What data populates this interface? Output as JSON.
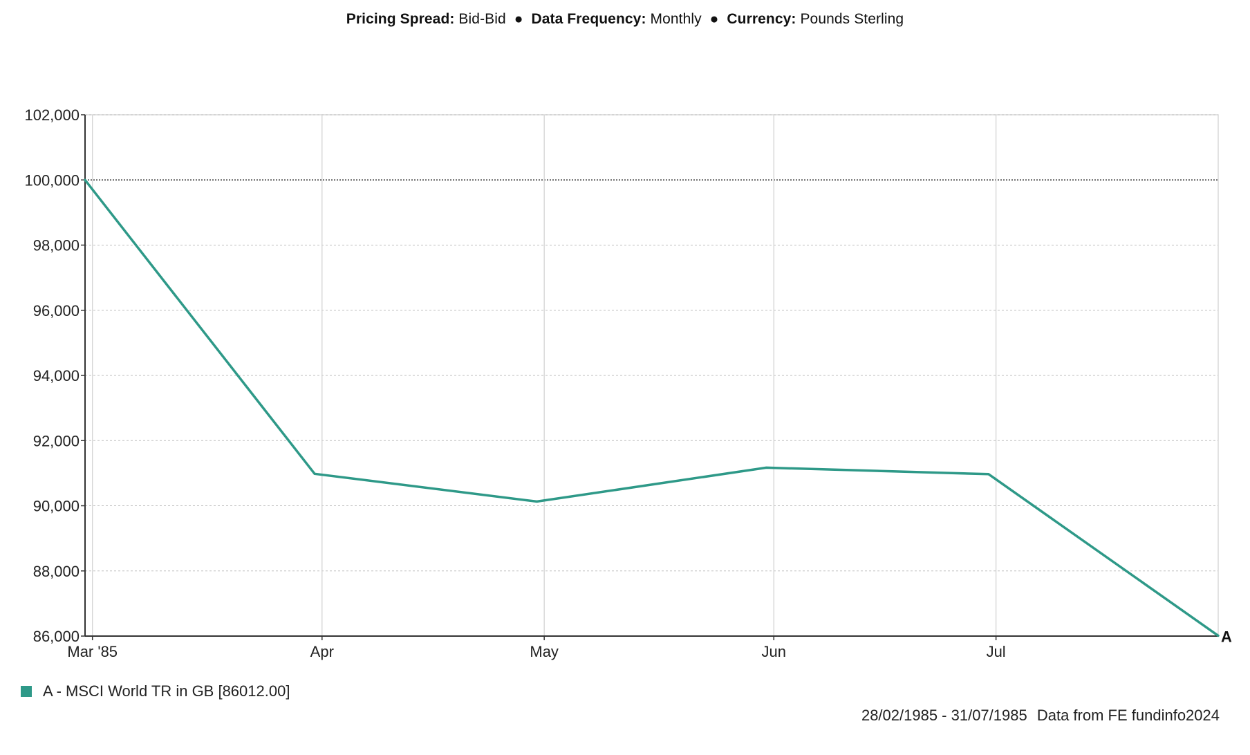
{
  "header": {
    "items": [
      {
        "label": "Pricing Spread:",
        "value": "Bid-Bid"
      },
      {
        "label": "Data Frequency:",
        "value": "Monthly"
      },
      {
        "label": "Currency:",
        "value": "Pounds Sterling"
      }
    ],
    "separator": "●"
  },
  "chart_data": {
    "type": "line",
    "x": [
      "1985-02-28",
      "1985-03-31",
      "1985-04-30",
      "1985-05-31",
      "1985-06-30",
      "1985-07-31"
    ],
    "series": [
      {
        "name": "A - MSCI World TR in GB [86012.00]",
        "marker": "A",
        "color": "#2e9988",
        "values": [
          100000,
          90980,
          90130,
          91170,
          90970,
          86012
        ]
      }
    ],
    "x_ticks": [
      {
        "date": "1985-03-01",
        "label": "Mar '85"
      },
      {
        "date": "1985-04-01",
        "label": "Apr"
      },
      {
        "date": "1985-05-01",
        "label": "May"
      },
      {
        "date": "1985-06-01",
        "label": "Jun"
      },
      {
        "date": "1985-07-01",
        "label": "Jul"
      }
    ],
    "x_range": [
      "1985-02-28",
      "1985-07-31"
    ],
    "y_ticks": [
      86000,
      88000,
      90000,
      92000,
      94000,
      96000,
      98000,
      100000,
      102000
    ],
    "y_tick_labels": [
      "86,000",
      "88,000",
      "90,000",
      "92,000",
      "94,000",
      "96,000",
      "98,000",
      "100,000",
      "102,000"
    ],
    "ylim": [
      86000,
      102000
    ],
    "reference_line": 100000,
    "grid": true,
    "legend_position": "bottom-left",
    "title": "",
    "xlabel": "",
    "ylabel": ""
  },
  "legend": {
    "label": "A - MSCI World TR in GB [86012.00]",
    "color": "#2e9988"
  },
  "footer": {
    "date_range": "28/02/1985 - 31/07/1985",
    "source": "Data from FE fundinfo2024"
  }
}
